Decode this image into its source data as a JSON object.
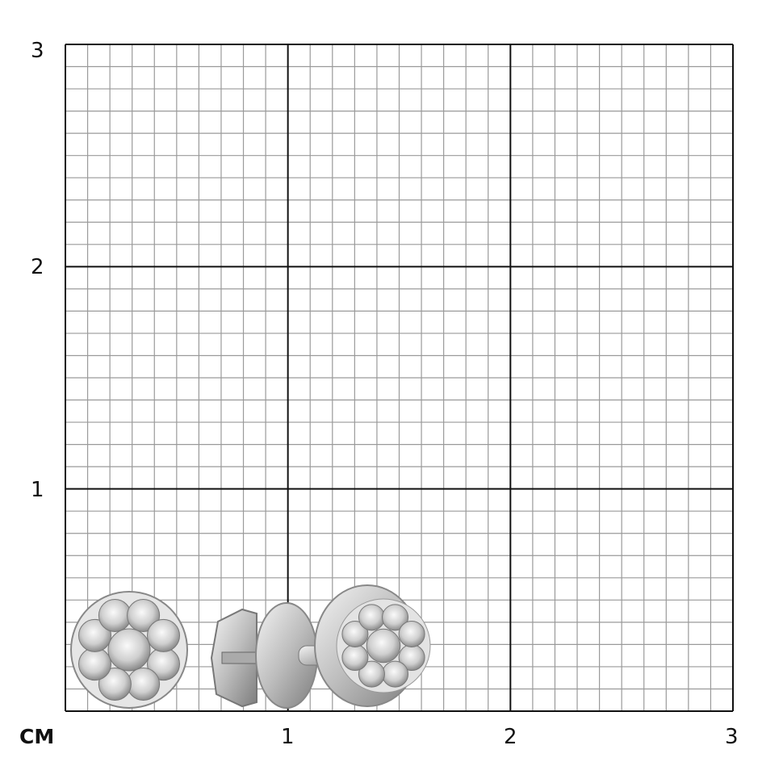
{
  "scale": {
    "unit_label": "CM",
    "x_tick_labels": [
      "1",
      "2",
      "3"
    ],
    "y_tick_labels": [
      "1",
      "2",
      "3"
    ],
    "range_cm": [
      0,
      3
    ],
    "minor_divisions_per_cm": 10
  },
  "colors": {
    "minor_grid": "#9a9a9a",
    "major_grid": "#111111",
    "metal": "#c8c8c8"
  },
  "product": {
    "items": [
      "earring-front-view",
      "earring-side-view-with-screw-back"
    ]
  }
}
